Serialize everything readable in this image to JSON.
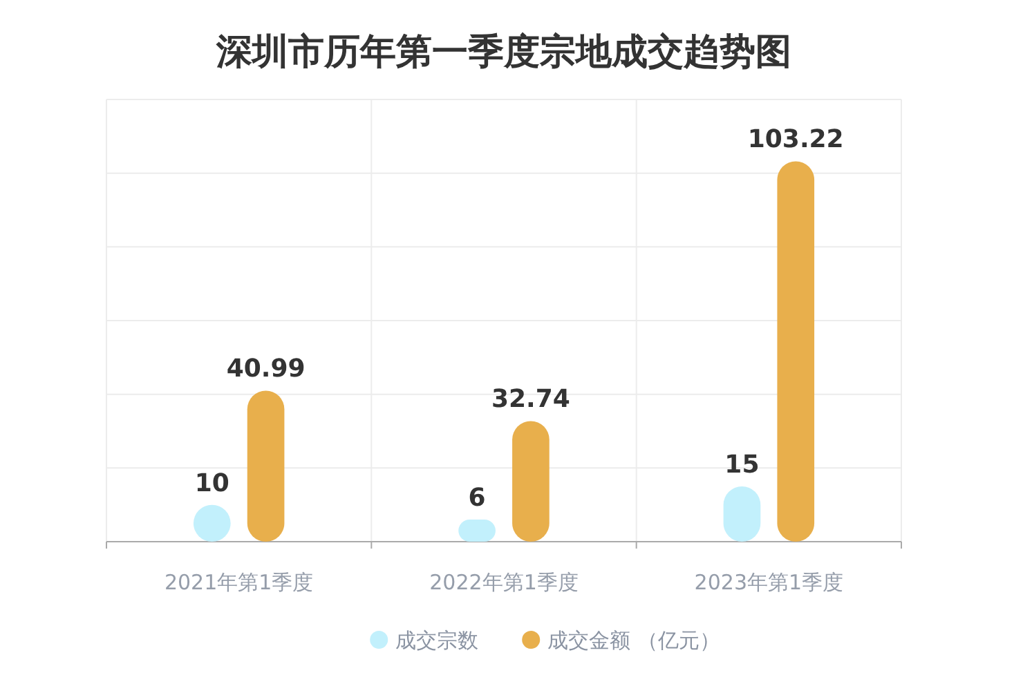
{
  "chart_data": {
    "type": "bar",
    "title": "深圳市历年第一季度宗地成交趋势图",
    "categories": [
      "2021年第1季度",
      "2022年第1季度",
      "2023年第1季度"
    ],
    "series": [
      {
        "name": "成交宗数",
        "color": "#c2f0fc",
        "values": [
          10,
          6,
          15
        ]
      },
      {
        "name": "成交金额 （亿元）",
        "color": "#e8af4c",
        "values": [
          40.99,
          32.74,
          103.22
        ]
      }
    ],
    "ylim": [
      0,
      120
    ],
    "yticks": [
      {
        "value": 0,
        "label": null
      },
      {
        "value": 20,
        "label": null
      },
      {
        "value": 40,
        "label": null
      },
      {
        "value": 60,
        "label": null
      },
      {
        "value": 80,
        "label": null
      },
      {
        "value": 100,
        "label": null
      },
      {
        "value": 120,
        "label": null
      }
    ],
    "grid": true,
    "legend": "bottom",
    "tick_labels": "x",
    "data_labels": true
  }
}
